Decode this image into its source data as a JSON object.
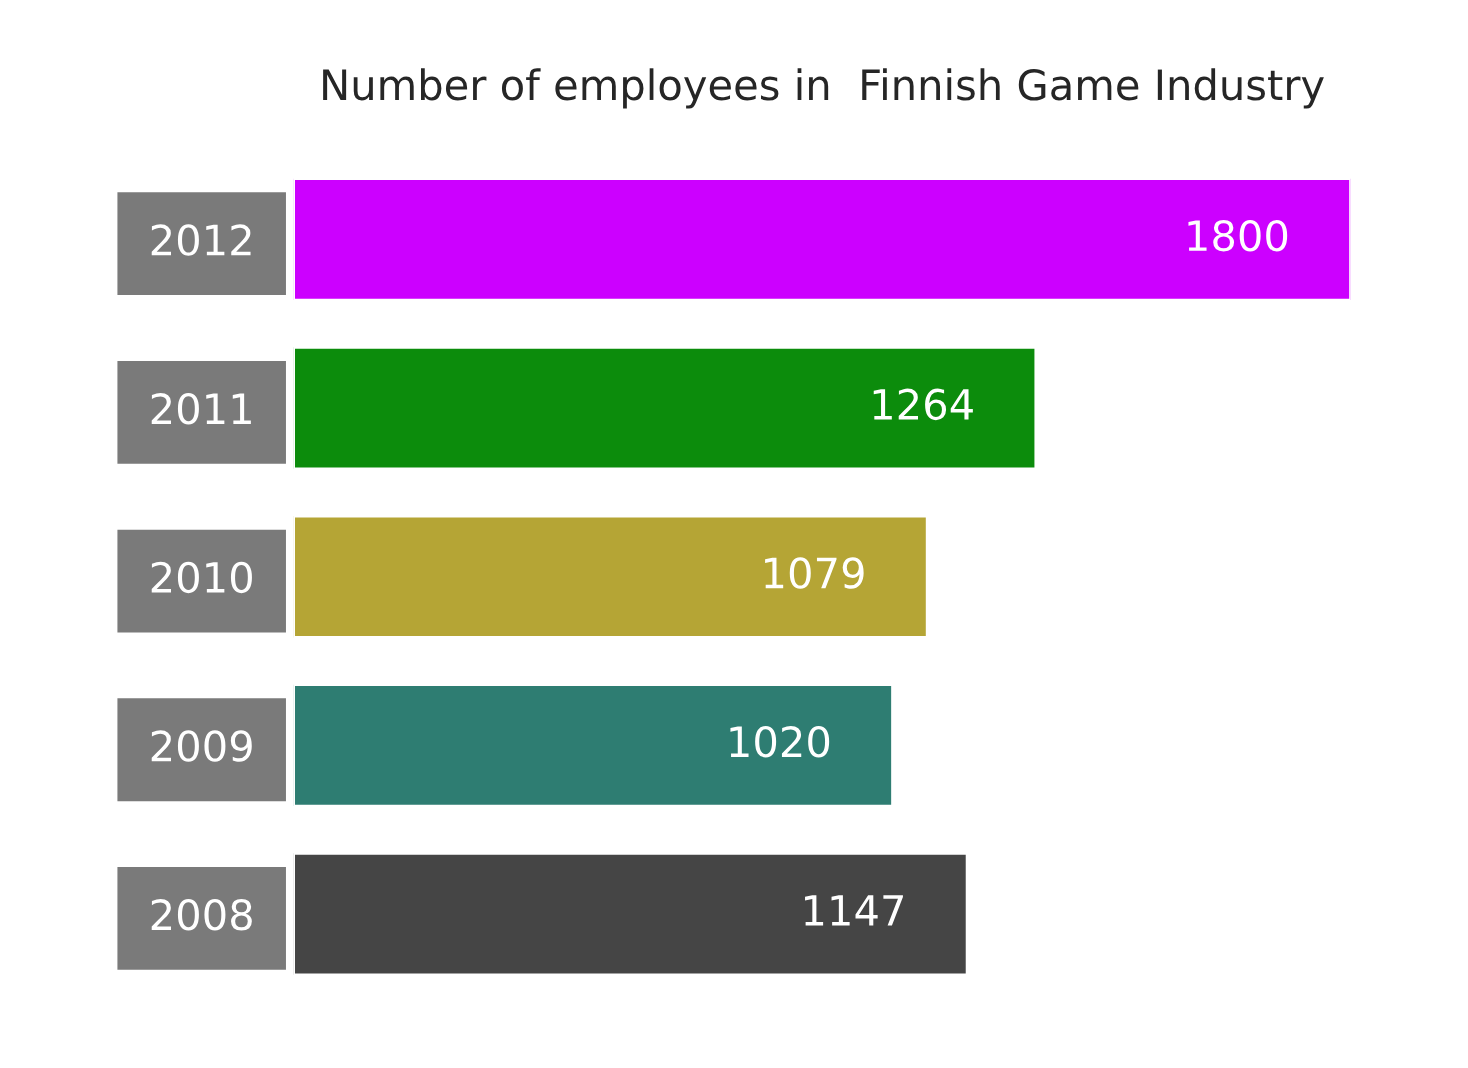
{
  "chart_data": {
    "type": "bar",
    "orientation": "horizontal",
    "title": "Number of employees in  Finnish Game Industry",
    "categories": [
      "2012",
      "2011",
      "2010",
      "2009",
      "2008"
    ],
    "values": [
      1800,
      1264,
      1079,
      1020,
      1147
    ],
    "colors": [
      "#cc00ff",
      "#0c8c0c",
      "#b5a535",
      "#2e7d72",
      "#454545"
    ],
    "data_labels": true
  }
}
